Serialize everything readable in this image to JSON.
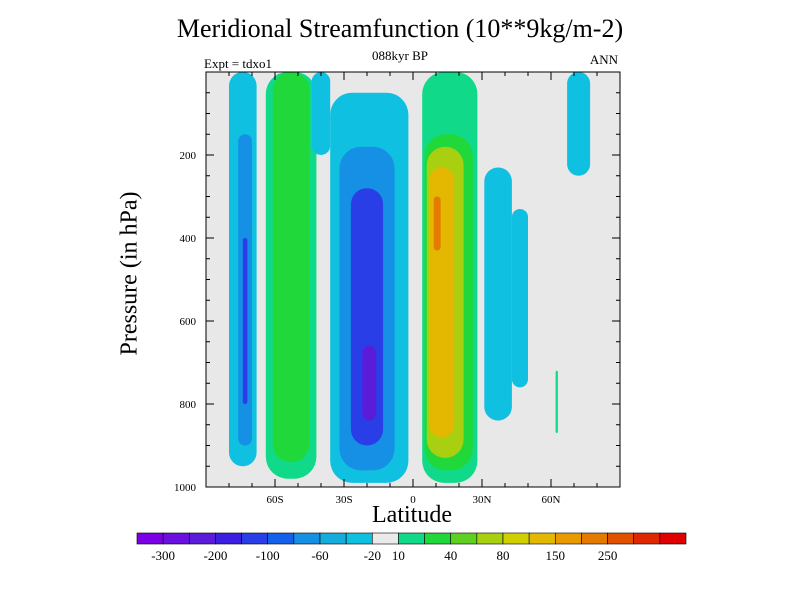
{
  "chart_data": {
    "type": "heatmap",
    "title": "Meridional Streamfunction (10**9kg/m-2)",
    "subtitle": "088kyr BP",
    "left_note": "Expt = tdxo1",
    "right_note": "ANN",
    "xlabel": "Latitude",
    "ylabel": "Pressure (in hPa)",
    "xlim": [
      -90,
      90
    ],
    "ylim": [
      1000,
      0
    ],
    "x_ticks": [
      {
        "value": -60,
        "label": "60S"
      },
      {
        "value": -30,
        "label": "30S"
      },
      {
        "value": 0,
        "label": "0"
      },
      {
        "value": 30,
        "label": "30N"
      },
      {
        "value": 60,
        "label": "60N"
      }
    ],
    "y_ticks": [
      {
        "value": 200,
        "label": "200"
      },
      {
        "value": 400,
        "label": "400"
      },
      {
        "value": 600,
        "label": "600"
      },
      {
        "value": 800,
        "label": "800"
      },
      {
        "value": 1000,
        "label": "1000"
      }
    ],
    "background_color": "#e8e8e8",
    "colorbar": {
      "colors": [
        "#7b00e6",
        "#6a10e0",
        "#5a1cd8",
        "#3b1ee0",
        "#2a3ee8",
        "#1560e8",
        "#1690e4",
        "#16acdc",
        "#10c0e0",
        "#eaeaea",
        "#10da8a",
        "#20d83a",
        "#60d020",
        "#a8d010",
        "#d0d000",
        "#e4b800",
        "#e89a00",
        "#e47a00",
        "#e05200",
        "#e02800",
        "#e00000"
      ],
      "labels": [
        {
          "after_index": 0,
          "text": "-300"
        },
        {
          "after_index": 2,
          "text": "-200"
        },
        {
          "after_index": 4,
          "text": "-100"
        },
        {
          "after_index": 6,
          "text": "-60"
        },
        {
          "after_index": 8,
          "text": "-20"
        },
        {
          "after_index": 9,
          "text": "10"
        },
        {
          "after_index": 11,
          "text": "40"
        },
        {
          "after_index": 13,
          "text": "80"
        },
        {
          "after_index": 15,
          "text": "150"
        },
        {
          "after_index": 17,
          "text": "250"
        }
      ]
    },
    "cells": [
      {
        "x0": -80,
        "x1": -68,
        "y0": 0,
        "y1": 950,
        "level": -20
      },
      {
        "x0": -76,
        "x1": -70,
        "y0": 150,
        "y1": 900,
        "level": -60
      },
      {
        "x0": -74,
        "x1": -72,
        "y0": 400,
        "y1": 800,
        "level": -100
      },
      {
        "x0": -64,
        "x1": -42,
        "y0": 0,
        "y1": 980,
        "level": 10
      },
      {
        "x0": -61,
        "x1": -45,
        "y0": 0,
        "y1": 940,
        "level": 40
      },
      {
        "x0": -44,
        "x1": -36,
        "y0": 0,
        "y1": 200,
        "level": -20
      },
      {
        "x0": -36,
        "x1": -2,
        "y0": 50,
        "y1": 990,
        "level": -20
      },
      {
        "x0": -32,
        "x1": -8,
        "y0": 180,
        "y1": 960,
        "level": -60
      },
      {
        "x0": -27,
        "x1": -13,
        "y0": 280,
        "y1": 900,
        "level": -100
      },
      {
        "x0": -22,
        "x1": -16,
        "y0": 660,
        "y1": 840,
        "level": -200
      },
      {
        "x0": 4,
        "x1": 28,
        "y0": 0,
        "y1": 990,
        "level": 10
      },
      {
        "x0": 5,
        "x1": 26,
        "y0": 150,
        "y1": 960,
        "level": 40
      },
      {
        "x0": 6,
        "x1": 22,
        "y0": 180,
        "y1": 930,
        "level": 80
      },
      {
        "x0": 7,
        "x1": 18,
        "y0": 230,
        "y1": 880,
        "level": 150
      },
      {
        "x0": 9,
        "x1": 12,
        "y0": 300,
        "y1": 430,
        "level": 250
      },
      {
        "x0": 31,
        "x1": 43,
        "y0": 230,
        "y1": 840,
        "level": -20
      },
      {
        "x0": 43,
        "x1": 50,
        "y0": 330,
        "y1": 760,
        "level": -20
      },
      {
        "x0": 67,
        "x1": 77,
        "y0": 0,
        "y1": 250,
        "level": -20
      },
      {
        "x0": 62,
        "x1": 63,
        "y0": 720,
        "y1": 870,
        "level": 10
      }
    ]
  }
}
